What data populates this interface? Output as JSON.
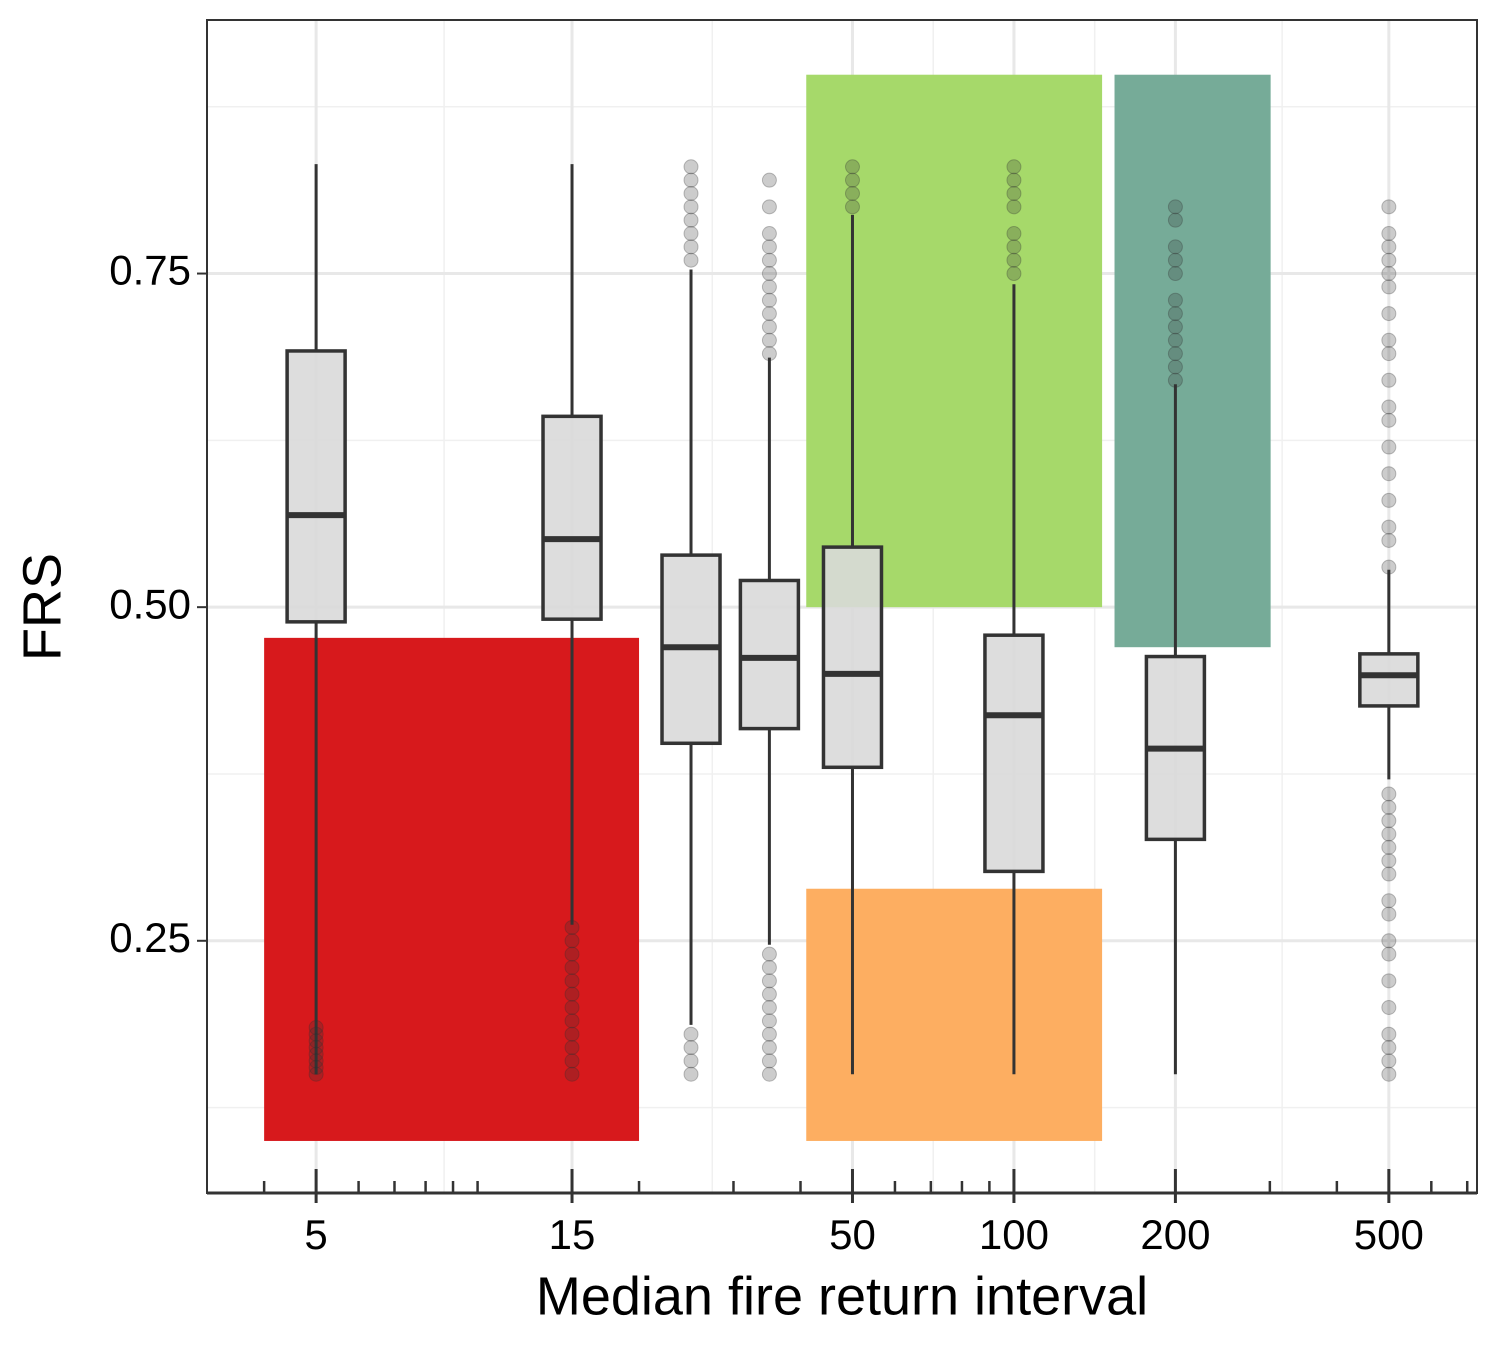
{
  "chart_data": {
    "type": "boxplot",
    "x_label": "Median fire return interval",
    "y_label": "FRS",
    "log_x": true,
    "grid": true,
    "xlim": [
      3.13,
      730
    ],
    "ylim": [
      0.061,
      0.94
    ],
    "xticks": [
      5,
      15,
      50,
      100,
      200,
      500
    ],
    "yticks": [
      0.25,
      {
        "value": 0.5,
        "label": "0.50"
      },
      0.75
    ],
    "xminor_ticks": [
      4,
      6,
      7,
      8,
      9,
      10,
      20,
      30,
      40,
      60,
      70,
      80,
      90,
      300,
      400,
      600,
      700
    ],
    "box_color": "#d9d9d9",
    "line_color": "#333333",
    "regions": [
      {
        "color": "#d7191c",
        "x": [
          4,
          20
        ],
        "y": [
          0.1,
          0.477
        ]
      },
      {
        "color": "#a6d96a",
        "x": [
          41,
          146
        ],
        "y": [
          0.5,
          0.899
        ]
      },
      {
        "color": "#fdae61",
        "x": [
          41,
          146
        ],
        "y": [
          0.1,
          0.289
        ]
      },
      {
        "color": "#76ab98",
        "x": [
          154,
          301
        ],
        "y": [
          0.47,
          0.899
        ]
      }
    ],
    "boxes": [
      {
        "x": 5,
        "whisker_low": 0.15,
        "q1": 0.489,
        "median": 0.569,
        "q3": 0.692,
        "whisker_high": 0.832,
        "outliers": [
          0.15,
          0.155,
          0.16,
          0.165,
          0.17,
          0.175,
          0.18,
          0.185
        ]
      },
      {
        "x": 15,
        "whisker_low": 0.262,
        "q1": 0.491,
        "median": 0.551,
        "q3": 0.643,
        "whisker_high": 0.832,
        "outliers": [
          0.15,
          0.16,
          0.17,
          0.18,
          0.19,
          0.2,
          0.21,
          0.22,
          0.23,
          0.24,
          0.25,
          0.26
        ]
      },
      {
        "x": 25,
        "whisker_low": 0.187,
        "q1": 0.398,
        "median": 0.47,
        "q3": 0.539,
        "whisker_high": 0.753,
        "outliers": [
          0.15,
          0.16,
          0.17,
          0.18,
          0.76,
          0.77,
          0.78,
          0.79,
          0.8,
          0.81,
          0.82,
          0.83
        ]
      },
      {
        "x": 35,
        "whisker_low": 0.247,
        "q1": 0.409,
        "median": 0.462,
        "q3": 0.52,
        "whisker_high": 0.687,
        "outliers": [
          0.15,
          0.16,
          0.17,
          0.18,
          0.19,
          0.2,
          0.21,
          0.22,
          0.23,
          0.24,
          0.69,
          0.7,
          0.71,
          0.72,
          0.73,
          0.74,
          0.75,
          0.76,
          0.77,
          0.78,
          0.8,
          0.82
        ]
      },
      {
        "x": 50,
        "whisker_low": 0.15,
        "q1": 0.38,
        "median": 0.45,
        "q3": 0.545,
        "whisker_high": 0.794,
        "outliers": [
          0.8,
          0.81,
          0.82,
          0.83
        ]
      },
      {
        "x": 100,
        "whisker_low": 0.15,
        "q1": 0.302,
        "median": 0.419,
        "q3": 0.479,
        "whisker_high": 0.742,
        "outliers": [
          0.75,
          0.76,
          0.77,
          0.78,
          0.8,
          0.81,
          0.82,
          0.83
        ]
      },
      {
        "x": 200,
        "whisker_low": 0.15,
        "q1": 0.326,
        "median": 0.394,
        "q3": 0.463,
        "whisker_high": 0.667,
        "outliers": [
          0.67,
          0.68,
          0.69,
          0.7,
          0.71,
          0.72,
          0.73,
          0.75,
          0.76,
          0.77,
          0.79,
          0.8
        ]
      },
      {
        "x": 500,
        "whisker_low": 0.371,
        "q1": 0.426,
        "median": 0.449,
        "q3": 0.465,
        "whisker_high": 0.528,
        "outliers": [
          0.15,
          0.16,
          0.17,
          0.18,
          0.2,
          0.22,
          0.24,
          0.25,
          0.27,
          0.28,
          0.3,
          0.31,
          0.32,
          0.33,
          0.34,
          0.35,
          0.36,
          0.53,
          0.55,
          0.56,
          0.58,
          0.6,
          0.62,
          0.64,
          0.65,
          0.67,
          0.69,
          0.7,
          0.72,
          0.74,
          0.75,
          0.76,
          0.77,
          0.78,
          0.8
        ]
      }
    ]
  }
}
